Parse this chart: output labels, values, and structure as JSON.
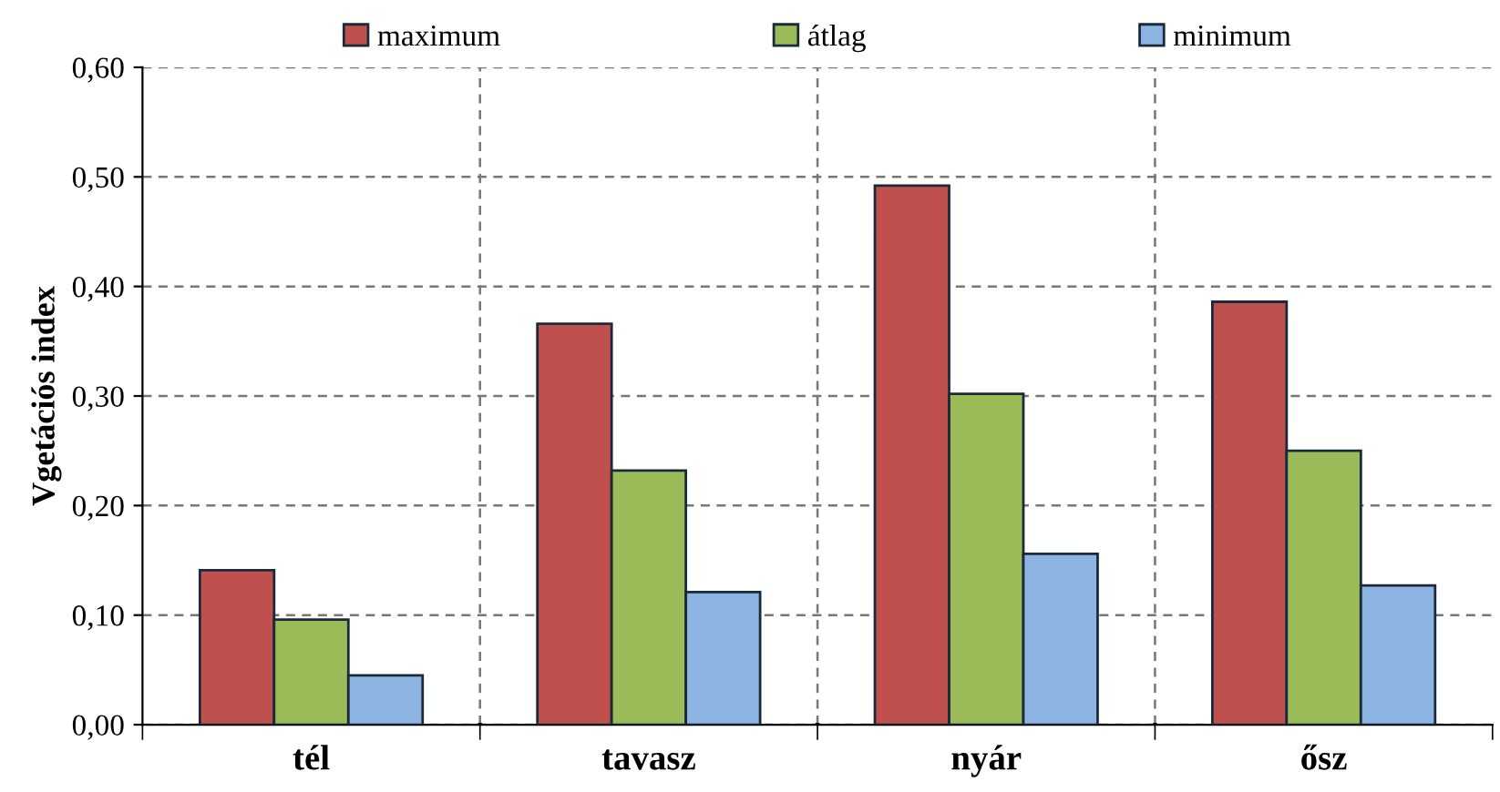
{
  "chart_data": {
    "type": "bar",
    "ylabel": "Vgetációs index",
    "categories": [
      "tél",
      "tavasz",
      "nyár",
      "ősz"
    ],
    "series": [
      {
        "name": "maximum",
        "color": "#c0504d",
        "values": [
          0.141,
          0.366,
          0.492,
          0.386
        ]
      },
      {
        "name": "átlag",
        "color": "#9bbb59",
        "values": [
          0.096,
          0.232,
          0.302,
          0.25
        ]
      },
      {
        "name": "minimum",
        "color": "#8db3e2",
        "values": [
          0.045,
          0.121,
          0.156,
          0.127
        ]
      }
    ],
    "ylim": [
      0,
      0.6
    ],
    "yticks": [
      {
        "value": 0,
        "label": "0,00"
      },
      {
        "value": 0.1,
        "label": "0,10"
      },
      {
        "value": 0.2,
        "label": "0,20"
      },
      {
        "value": 0.3,
        "label": "0,30"
      },
      {
        "value": 0.4,
        "label": "0,40"
      },
      {
        "value": 0.5,
        "label": "0,50"
      },
      {
        "value": 0.6,
        "label": "0,60"
      }
    ],
    "grid": true,
    "legend": "top"
  }
}
